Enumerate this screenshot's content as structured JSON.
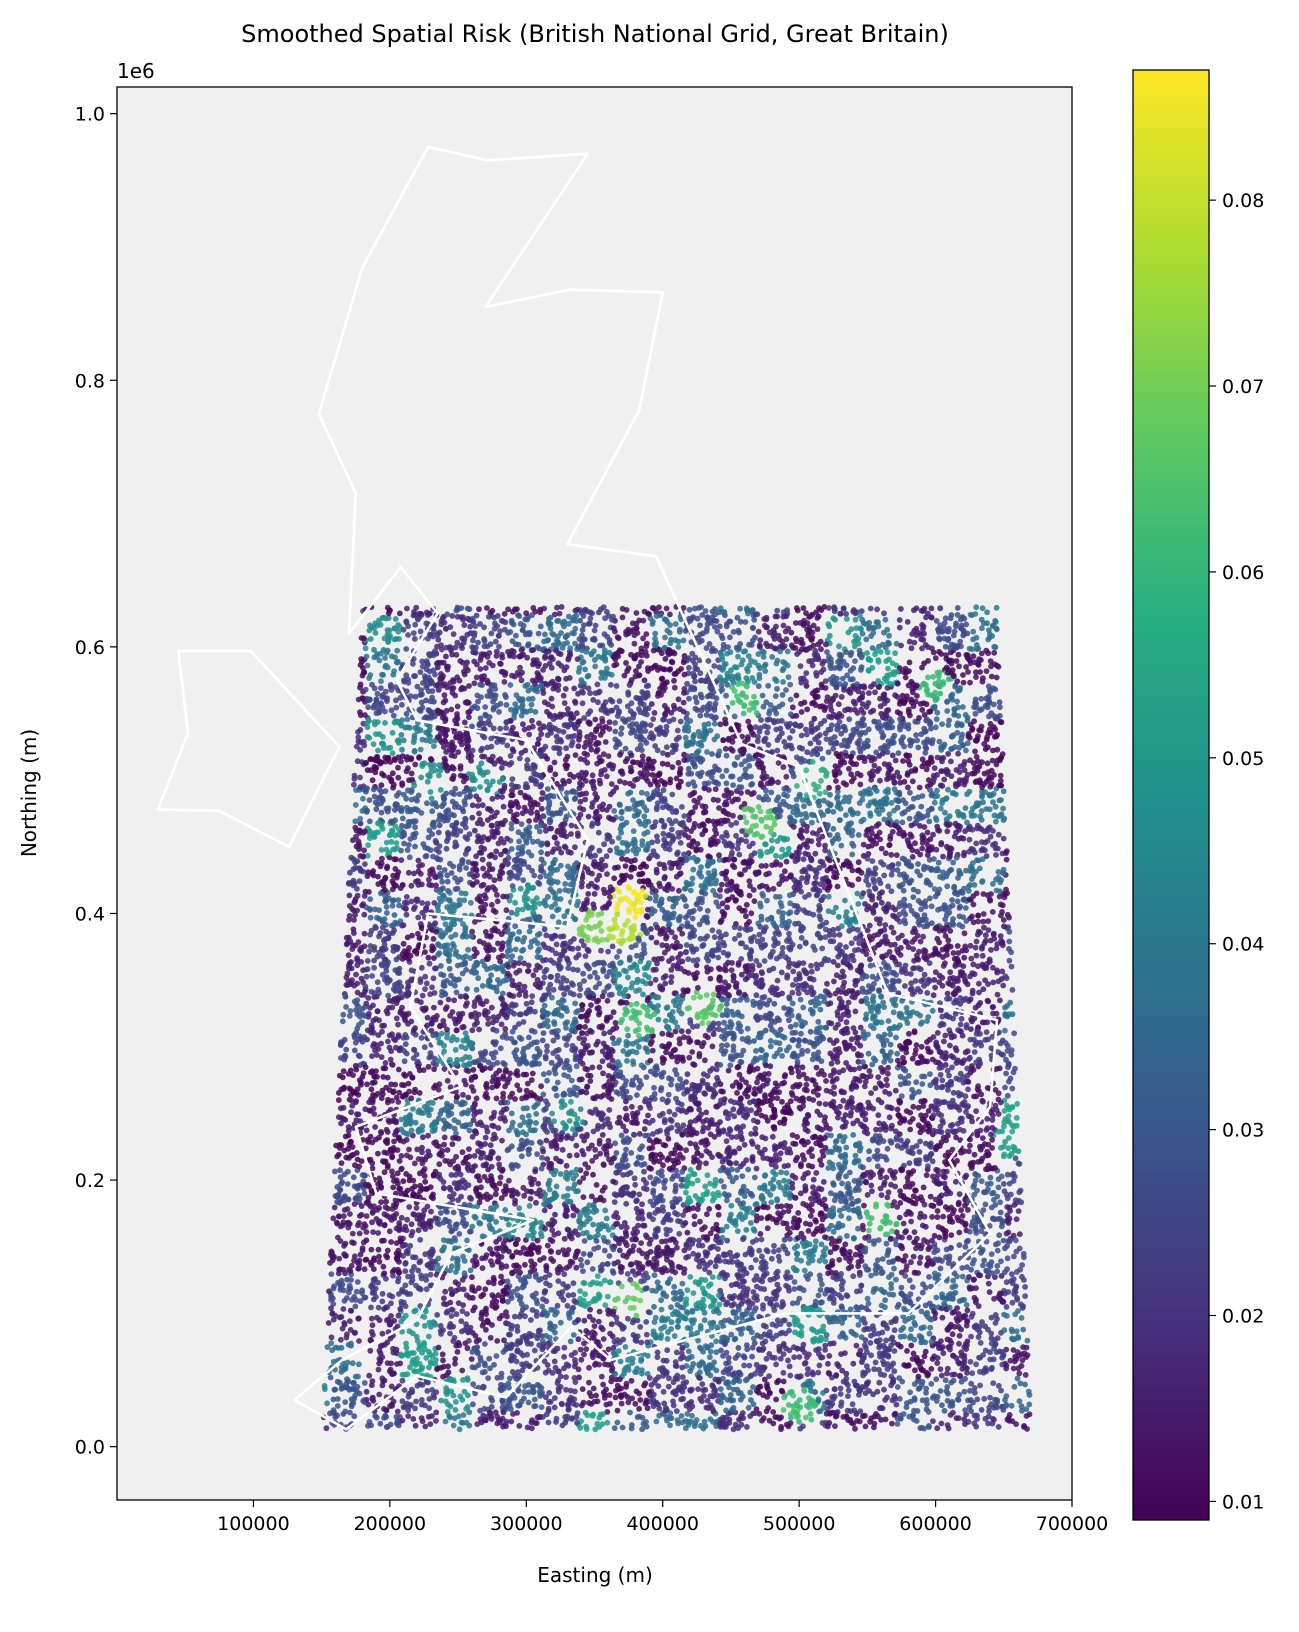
{
  "chart_data": {
    "type": "scatter",
    "title": "Smoothed Spatial Risk (British National Grid, Great Britain)",
    "xlabel": "Easting (m)",
    "ylabel": "Northing (m)",
    "y_offset_label": "1e6",
    "xlim": [
      0,
      700000
    ],
    "ylim": [
      -0.04,
      1.02
    ],
    "xticks": [
      100000,
      200000,
      300000,
      400000,
      500000,
      600000,
      700000
    ],
    "xtick_labels": [
      "100000",
      "200000",
      "300000",
      "400000",
      "500000",
      "600000",
      "700000"
    ],
    "yticks": [
      0.0,
      0.2,
      0.4,
      0.6,
      0.8,
      1.0
    ],
    "ytick_labels": [
      "0.0",
      "0.2",
      "0.4",
      "0.6",
      "0.8",
      "1.0"
    ],
    "plot_background": "#f0f0f0",
    "grid": false,
    "colormap": "viridis",
    "colorbar": {
      "range": [
        0.009,
        0.087
      ],
      "ticks": [
        0.01,
        0.02,
        0.03,
        0.04,
        0.05,
        0.06,
        0.07,
        0.08
      ],
      "tick_labels": [
        "0.01",
        "0.02",
        "0.03",
        "0.04",
        "0.05",
        "0.06",
        "0.07",
        "0.08"
      ]
    },
    "points_extent": {
      "easting": [
        150000,
        670000
      ],
      "northing": [
        0.013,
        0.63
      ]
    },
    "hotspots": [
      {
        "easting": 375000,
        "northing": 0.41,
        "value": 0.087
      },
      {
        "easting": 372000,
        "northing": 0.39,
        "value": 0.08
      },
      {
        "easting": 350000,
        "northing": 0.39,
        "value": 0.072
      },
      {
        "easting": 382000,
        "northing": 0.32,
        "value": 0.065
      },
      {
        "easting": 430000,
        "northing": 0.33,
        "value": 0.068
      },
      {
        "easting": 375000,
        "northing": 0.11,
        "value": 0.07
      },
      {
        "easting": 460000,
        "northing": 0.56,
        "value": 0.065
      },
      {
        "easting": 470000,
        "northing": 0.47,
        "value": 0.068
      },
      {
        "easting": 510000,
        "northing": 0.5,
        "value": 0.06
      },
      {
        "easting": 600000,
        "northing": 0.57,
        "value": 0.062
      },
      {
        "easting": 560000,
        "northing": 0.17,
        "value": 0.065
      },
      {
        "easting": 500000,
        "northing": 0.03,
        "value": 0.065
      },
      {
        "easting": 655000,
        "northing": 0.23,
        "value": 0.055
      },
      {
        "easting": 300000,
        "northing": 0.41,
        "value": 0.05
      },
      {
        "easting": 330000,
        "northing": 0.25,
        "value": 0.05
      },
      {
        "easting": 270000,
        "northing": 0.5,
        "value": 0.05
      },
      {
        "easting": 230000,
        "northing": 0.5,
        "value": 0.05
      }
    ],
    "outline_color": "#ffffff",
    "outline_shapes": [
      {
        "name": "mainland",
        "points": [
          [
            168000,
            0.013
          ],
          [
            130000,
            0.035
          ],
          [
            165000,
            0.065
          ],
          [
            220000,
            0.095
          ],
          [
            245000,
            0.145
          ],
          [
            305000,
            0.17
          ],
          [
            190000,
            0.19
          ],
          [
            175000,
            0.24
          ],
          [
            252000,
            0.27
          ],
          [
            215000,
            0.33
          ],
          [
            228000,
            0.4
          ],
          [
            330000,
            0.39
          ],
          [
            345000,
            0.455
          ],
          [
            300000,
            0.53
          ],
          [
            220000,
            0.545
          ],
          [
            205000,
            0.575
          ],
          [
            235000,
            0.625
          ],
          [
            208000,
            0.66
          ],
          [
            170000,
            0.61
          ],
          [
            175000,
            0.715
          ],
          [
            148000,
            0.775
          ],
          [
            180000,
            0.885
          ],
          [
            228000,
            0.975
          ],
          [
            272000,
            0.965
          ],
          [
            345000,
            0.97
          ],
          [
            270000,
            0.855
          ],
          [
            332000,
            0.868
          ],
          [
            400000,
            0.866
          ],
          [
            383000,
            0.778
          ],
          [
            330000,
            0.677
          ],
          [
            395000,
            0.668
          ],
          [
            458000,
            0.527
          ],
          [
            500000,
            0.51
          ],
          [
            565000,
            0.34
          ],
          [
            645000,
            0.32
          ],
          [
            640000,
            0.255
          ],
          [
            610000,
            0.215
          ],
          [
            640000,
            0.16
          ],
          [
            580000,
            0.1
          ],
          [
            490000,
            0.1
          ],
          [
            362000,
            0.065
          ],
          [
            333000,
            0.09
          ],
          [
            285000,
            0.037
          ],
          [
            220000,
            0.053
          ]
        ]
      },
      {
        "name": "island",
        "points": [
          [
            45000,
            0.597
          ],
          [
            98000,
            0.597
          ],
          [
            163000,
            0.525
          ],
          [
            126000,
            0.45
          ],
          [
            75000,
            0.477
          ],
          [
            30000,
            0.478
          ],
          [
            52000,
            0.535
          ]
        ]
      }
    ]
  }
}
